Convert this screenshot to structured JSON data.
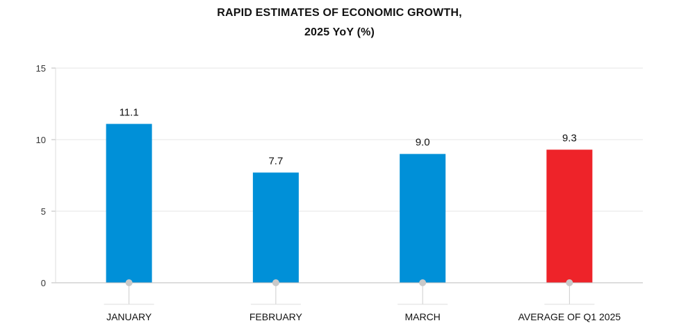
{
  "chart_data": {
    "type": "bar",
    "title_line1": "RAPID ESTIMATES OF ECONOMIC GROWTH,",
    "title_line2": "2025 YoY (%)",
    "categories": [
      "JANUARY",
      "FEBRUARY",
      "MARCH",
      "AVERAGE OF Q1 2025"
    ],
    "values": [
      11.1,
      7.7,
      9.0,
      9.3
    ],
    "value_labels": [
      "11.1",
      "7.7",
      "9.0",
      "9.3"
    ],
    "ylim": [
      0,
      15
    ],
    "yticks": [
      0,
      5,
      10,
      15
    ],
    "grid": true,
    "colors": [
      "#0090d8",
      "#0090d8",
      "#0090d8",
      "#ee2329"
    ]
  }
}
